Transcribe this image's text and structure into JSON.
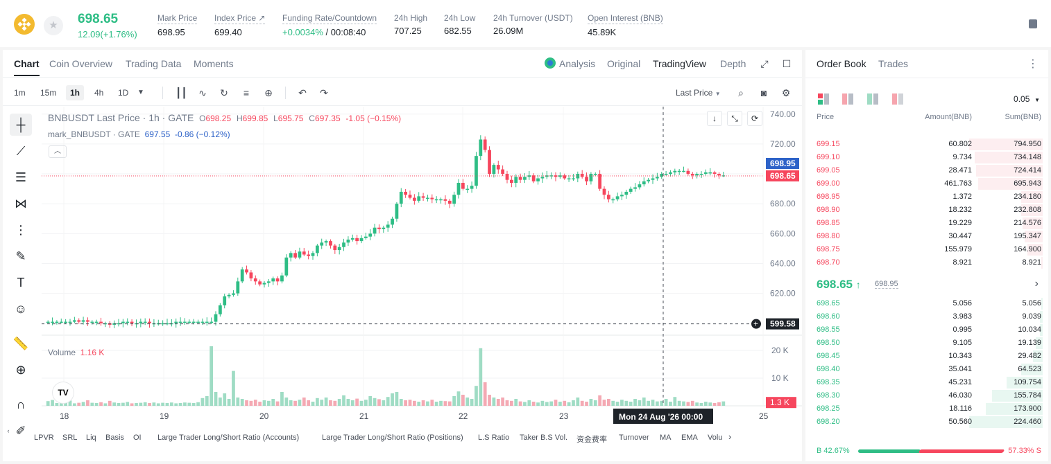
{
  "ticker": {
    "last_price": "698.65",
    "change": "12.09(+1.76%)",
    "stats": [
      {
        "label": "Mark Price",
        "value": "698.95"
      },
      {
        "label": "Index Price ↗",
        "value": "699.40"
      },
      {
        "label": "Funding Rate/Countdown",
        "value_green": "+0.0034%",
        "value_rest": " / 00:08:40"
      },
      {
        "label": "24h High",
        "value": "707.25"
      },
      {
        "label": "24h Low",
        "value": "682.55"
      },
      {
        "label": "24h Turnover (USDT)",
        "value": "26.09M"
      },
      {
        "label": "Open Interest (BNB)",
        "value": "45.89K"
      }
    ]
  },
  "chart_tabs": [
    "Chart",
    "Coin Overview",
    "Trading Data",
    "Moments"
  ],
  "view_tabs": [
    "Analysis",
    "Original",
    "TradingView",
    "Depth"
  ],
  "timeframes": [
    "1m",
    "15m",
    "1h",
    "4h",
    "1D"
  ],
  "price_source": "Last Price",
  "legend": {
    "symbol": "BNBUSDT Last Price · 1h · GATE",
    "o_label": "O",
    "o": "698.25",
    "h_label": "H",
    "h": "699.85",
    "l_label": "L",
    "l": "695.75",
    "c_label": "C",
    "c": "697.35",
    "chg": "-1.05 (−0.15%)",
    "mark_label": "mark_BNBUSDT · GATE",
    "mark_val": "697.55",
    "mark_chg": "-0.86 (−0.12%)"
  },
  "volume_legend": {
    "label": "Volume",
    "value": "1.16 K"
  },
  "chart_data": {
    "type": "candlestick",
    "price_axis_ticks": [
      "740.00",
      "720.00",
      "700.00",
      "680.00",
      "660.00",
      "640.00",
      "620.00"
    ],
    "volume_axis_ticks": [
      "20 K",
      "10 K"
    ],
    "x_ticks": [
      "18",
      "19",
      "20",
      "21",
      "22",
      "23",
      "25"
    ],
    "ylim": [
      592,
      745
    ],
    "price_labels": {
      "mark": "698.95",
      "last": "698.65",
      "cursor": "599.58",
      "volume": "1.3 K"
    },
    "crosshair_time": "Mon 24 Aug '26   00:00",
    "closes": [
      601,
      601,
      601,
      601,
      601,
      601,
      602,
      601,
      602,
      601,
      601,
      601,
      600,
      600,
      599,
      600,
      600,
      601,
      601,
      600,
      600,
      601,
      601,
      600,
      600,
      600,
      600,
      600,
      600,
      601,
      601,
      601,
      601,
      601,
      601,
      601,
      601,
      601,
      606,
      612,
      618,
      619,
      620,
      628,
      636,
      634,
      630,
      628,
      626,
      627,
      628,
      630,
      628,
      632,
      644,
      647,
      644,
      648,
      646,
      645,
      647,
      652,
      654,
      655,
      652,
      649,
      651,
      654,
      656,
      657,
      655,
      657,
      658,
      660,
      664,
      663,
      664,
      666,
      670,
      680,
      688,
      686,
      684,
      682,
      685,
      684,
      684,
      683,
      683,
      683,
      682,
      680,
      686,
      694,
      690,
      690,
      692,
      712,
      723,
      716,
      700,
      706,
      703,
      700,
      696,
      694,
      698,
      696,
      698,
      699,
      695,
      697,
      698,
      699,
      699,
      698,
      699,
      697,
      697,
      697,
      700,
      698,
      695,
      700,
      700,
      690,
      686,
      683,
      683,
      685,
      686,
      688,
      690,
      691,
      693,
      695,
      696,
      697,
      698,
      700,
      700,
      701,
      702,
      702,
      702,
      700,
      699,
      700,
      700,
      701,
      701,
      700,
      699,
      699
    ],
    "volumes": [
      1.7,
      2.1,
      1.0,
      1.2,
      1.5,
      1.9,
      0.9,
      1.1,
      1.4,
      2.0,
      1.1,
      1.0,
      1.3,
      0.9,
      1.8,
      1.2,
      1.0,
      1.1,
      1.4,
      0.9,
      1.0,
      1.1,
      1.3,
      1.0,
      1.2,
      0.9,
      1.1,
      1.0,
      1.2,
      0.9,
      1.0,
      1.2,
      1.1,
      1.0,
      1.3,
      2.8,
      3.5,
      21.5,
      5.0,
      3.0,
      4.5,
      2.5,
      12.6,
      3.0,
      2.5,
      2.0,
      1.8,
      2.2,
      1.5,
      2.0,
      1.8,
      2.5,
      1.6,
      5.0,
      3.0,
      2.0,
      1.8,
      2.2,
      3.0,
      2.0,
      1.5,
      2.8,
      2.2,
      3.0,
      2.0,
      1.8,
      2.5,
      3.8,
      2.5,
      2.0,
      2.6,
      1.8,
      2.2,
      3.5,
      2.8,
      2.4,
      2.0,
      3.2,
      4.5,
      5.0,
      2.5,
      2.0,
      2.2,
      1.8,
      1.5,
      2.0,
      1.6,
      2.2,
      1.5,
      1.8,
      1.7,
      1.6,
      3.5,
      5.2,
      4.0,
      3.0,
      2.5,
      7.2,
      20.8,
      8.5,
      4.0,
      3.0,
      2.5,
      3.0,
      2.0,
      1.8,
      2.5,
      1.6,
      1.4,
      2.0,
      1.5,
      1.2,
      1.8,
      1.4,
      1.6,
      2.2,
      1.5,
      1.8,
      1.3,
      2.0,
      3.0,
      1.8,
      1.5,
      2.5,
      2.0,
      3.8,
      2.2,
      2.5,
      1.8,
      1.5,
      2.2,
      1.8,
      1.5,
      2.5,
      2.0,
      3.0,
      1.8,
      2.2,
      1.6,
      1.8,
      2.5,
      1.5,
      3.2,
      1.8,
      1.6,
      1.4,
      1.8,
      1.2,
      1.0,
      1.5,
      1.2,
      1.0,
      1.3,
      1.6
    ]
  },
  "indicators": [
    "LPVR",
    "SRL",
    "Liq",
    "Basis",
    "OI",
    "Large Trader Long/Short Ratio (Accounts)",
    "Large Trader Long/Short Ratio (Positions)",
    "L.S Ratio",
    "Taker B.S Vol.",
    "资金费率",
    "Turnover",
    "MA",
    "EMA",
    "Volu"
  ],
  "orderbook": {
    "tabs": [
      "Order Book",
      "Trades"
    ],
    "tick": "0.05",
    "headers": [
      "Price",
      "Amount(BNB)",
      "Sum(BNB)"
    ],
    "asks": [
      {
        "price": "699.15",
        "amount": "60.802",
        "sum": "794.950",
        "depth": 1.0
      },
      {
        "price": "699.10",
        "amount": "9.734",
        "sum": "734.148",
        "depth": 0.92
      },
      {
        "price": "699.05",
        "amount": "28.471",
        "sum": "724.414",
        "depth": 0.91
      },
      {
        "price": "699.00",
        "amount": "461.763",
        "sum": "695.943",
        "depth": 0.88
      },
      {
        "price": "698.95",
        "amount": "1.372",
        "sum": "234.180",
        "depth": 0.29
      },
      {
        "price": "698.90",
        "amount": "18.232",
        "sum": "232.808",
        "depth": 0.29
      },
      {
        "price": "698.85",
        "amount": "19.229",
        "sum": "214.576",
        "depth": 0.27
      },
      {
        "price": "698.80",
        "amount": "30.447",
        "sum": "195.347",
        "depth": 0.25
      },
      {
        "price": "698.75",
        "amount": "155.979",
        "sum": "164.900",
        "depth": 0.21
      },
      {
        "price": "698.70",
        "amount": "8.921",
        "sum": "8.921",
        "depth": 0.01
      }
    ],
    "mid_price": "698.65",
    "mid_arrow": "↑",
    "mid_mark": "698.95",
    "bids": [
      {
        "price": "698.65",
        "amount": "5.056",
        "sum": "5.056",
        "depth": 0.02
      },
      {
        "price": "698.60",
        "amount": "3.983",
        "sum": "9.039",
        "depth": 0.04
      },
      {
        "price": "698.55",
        "amount": "0.995",
        "sum": "10.034",
        "depth": 0.04
      },
      {
        "price": "698.50",
        "amount": "9.105",
        "sum": "19.139",
        "depth": 0.09
      },
      {
        "price": "698.45",
        "amount": "10.343",
        "sum": "29.482",
        "depth": 0.13
      },
      {
        "price": "698.40",
        "amount": "35.041",
        "sum": "64.523",
        "depth": 0.29
      },
      {
        "price": "698.35",
        "amount": "45.231",
        "sum": "109.754",
        "depth": 0.49
      },
      {
        "price": "698.30",
        "amount": "46.030",
        "sum": "155.784",
        "depth": 0.69
      },
      {
        "price": "698.25",
        "amount": "18.116",
        "sum": "173.900",
        "depth": 0.77
      },
      {
        "price": "698.20",
        "amount": "50.560",
        "sum": "224.460",
        "depth": 1.0
      }
    ],
    "buy_pct": "42.67%",
    "sell_pct": "57.33%",
    "buy_label": "B",
    "sell_label": "S"
  },
  "colors": {
    "up": "#2ebd85",
    "down": "#f6465d",
    "accent": "#f3ba2f"
  }
}
